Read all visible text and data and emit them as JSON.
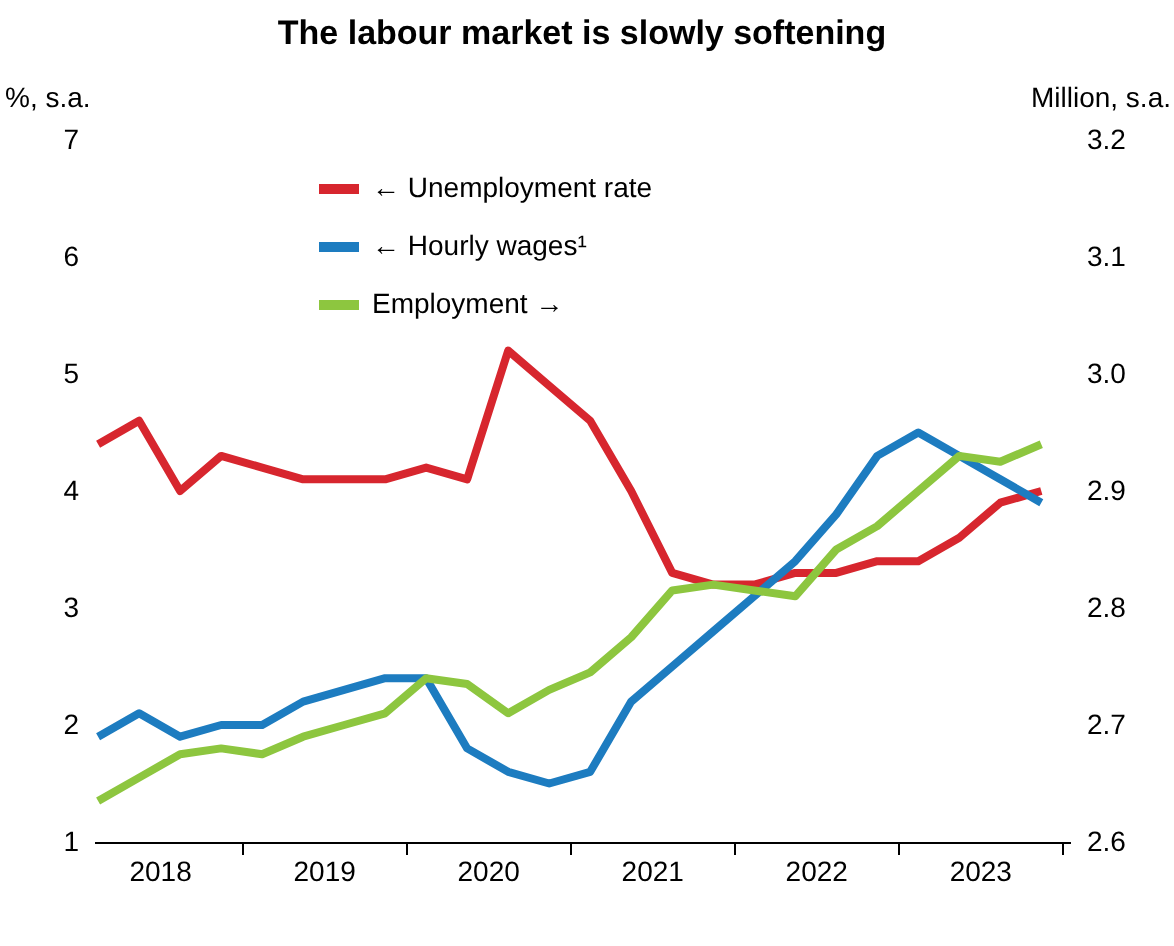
{
  "chart_data": {
    "type": "line",
    "title": "The labour market is slowly softening",
    "ylabel": "%, s.a.",
    "y2label": "Million, s.a.",
    "x": [
      2018.125,
      2018.375,
      2018.625,
      2018.875,
      2019.125,
      2019.375,
      2019.625,
      2019.875,
      2020.125,
      2020.375,
      2020.625,
      2020.875,
      2021.125,
      2021.375,
      2021.625,
      2021.875,
      2022.125,
      2022.375,
      2022.625,
      2022.875,
      2023.125,
      2023.375,
      2023.625,
      2023.875
    ],
    "xlim": [
      2018.1,
      2024.05
    ],
    "xticks": [
      {
        "value": 2018.5,
        "label": "2018"
      },
      {
        "value": 2019,
        "label": null
      },
      {
        "value": 2019.5,
        "label": "2019"
      },
      {
        "value": 2020,
        "label": null
      },
      {
        "value": 2020.5,
        "label": "2020"
      },
      {
        "value": 2021,
        "label": null
      },
      {
        "value": 2021.5,
        "label": "2021"
      },
      {
        "value": 2022,
        "label": null
      },
      {
        "value": 2022.5,
        "label": "2022"
      },
      {
        "value": 2023,
        "label": null
      },
      {
        "value": 2023.5,
        "label": "2023"
      },
      {
        "value": 2024,
        "label": null
      }
    ],
    "ylim": [
      1,
      7
    ],
    "yticks": [
      1,
      2,
      3,
      4,
      5,
      6,
      7
    ],
    "y2lim": [
      2.6,
      3.2
    ],
    "y2ticks": [
      2.6,
      2.7,
      2.8,
      2.9,
      {
        "value": 3.0,
        "label": "3.0"
      },
      3.1,
      3.2
    ],
    "series": [
      {
        "name": "← Unemployment rate",
        "color": "#d7262e",
        "values": [
          4.4,
          4.6,
          4.0,
          4.3,
          4.2,
          4.1,
          4.1,
          4.1,
          4.2,
          4.1,
          5.2,
          4.9,
          4.6,
          4.0,
          3.3,
          3.2,
          3.2,
          3.3,
          3.3,
          3.4,
          3.4,
          3.6,
          3.9,
          4.0
        ]
      },
      {
        "name": "← Hourly wages¹",
        "color": "#1d7cc0",
        "values": [
          1.9,
          2.1,
          1.9,
          2.0,
          2.0,
          2.2,
          2.3,
          2.4,
          2.4,
          1.8,
          1.6,
          1.5,
          1.6,
          2.2,
          2.5,
          2.8,
          3.1,
          3.4,
          3.8,
          4.3,
          4.5,
          4.3,
          4.1,
          3.9
        ]
      },
      {
        "name": "Employment →",
        "color": "#8dc63f",
        "axis": "y2",
        "values": [
          2.635,
          2.655,
          2.675,
          2.68,
          2.675,
          2.69,
          2.7,
          2.71,
          2.74,
          2.735,
          2.71,
          2.73,
          2.745,
          2.775,
          2.815,
          2.82,
          2.815,
          2.81,
          2.85,
          2.87,
          2.9,
          2.93,
          2.925,
          2.94
        ]
      }
    ],
    "legend": "top",
    "grid": false,
    "marker": "none",
    "line_style": "solid"
  }
}
